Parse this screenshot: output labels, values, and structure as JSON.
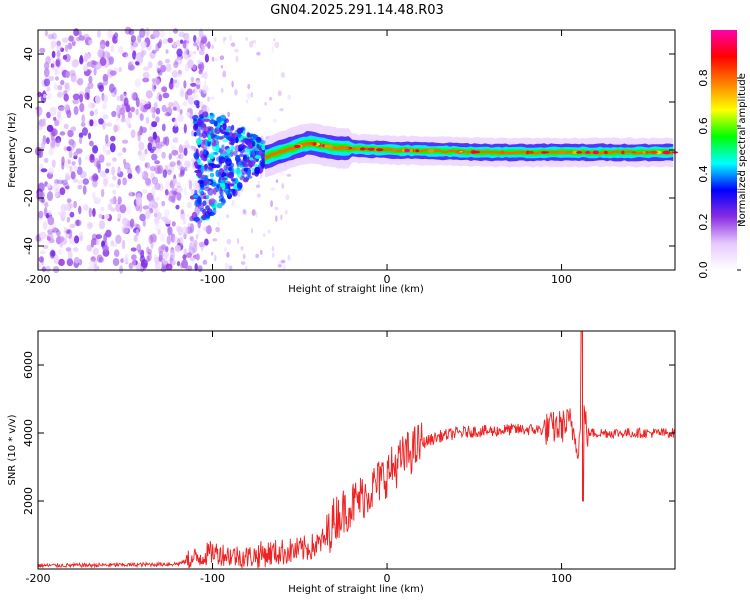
{
  "title": "GN04.2025.291.14.48.R03",
  "chart_data": [
    {
      "type": "heatmap",
      "name": "spectrogram",
      "xlabel": "Height of straight line (km)",
      "ylabel": "Frequency (Hz)",
      "xlim": [
        -200,
        165
      ],
      "ylim": [
        -50,
        50
      ],
      "xticks": [
        -200,
        -100,
        0,
        100
      ],
      "yticks": [
        -40,
        -20,
        0,
        20,
        40
      ],
      "colorbar": {
        "label": "Normalized spectral amplitude",
        "range": [
          0.0,
          1.0
        ],
        "ticks": [
          0.0,
          0.2,
          0.4,
          0.6,
          0.8
        ],
        "colormap": [
          "#ffffff",
          "#e6c8ff",
          "#8a2be2",
          "#0000ff",
          "#00ffff",
          "#00ff00",
          "#ffff00",
          "#ff8000",
          "#ff0000",
          "#ff00aa"
        ]
      },
      "features": [
        {
          "region": "noise",
          "x_range": [
            -200,
            -110
          ],
          "f_range": [
            -50,
            50
          ],
          "amplitude": 0.15
        },
        {
          "region": "transition",
          "x_range": [
            -110,
            -70
          ],
          "f_range": [
            -25,
            15
          ],
          "amplitude": 0.3
        },
        {
          "region": "signal",
          "x_range": [
            -70,
            165
          ],
          "center_freq": [
            [
              -70,
              -3
            ],
            [
              -45,
              3
            ],
            [
              -30,
              1
            ],
            [
              0,
              0
            ],
            [
              60,
              -1
            ],
            [
              165,
              -1
            ]
          ],
          "amplitude": 0.8
        }
      ]
    },
    {
      "type": "line",
      "name": "snr",
      "xlabel": "Height of straight line (km)",
      "ylabel": "SNR (10 * v/v)",
      "xlim": [
        -200,
        165
      ],
      "ylim": [
        0,
        7000
      ],
      "xticks": [
        -200,
        -100,
        0,
        100
      ],
      "yticks": [
        2000,
        4000,
        6000
      ],
      "color": "#ee2222",
      "x": [
        -200,
        -150,
        -120,
        -110,
        -100,
        -90,
        -80,
        -70,
        -60,
        -50,
        -40,
        -35,
        -30,
        -20,
        -10,
        0,
        10,
        20,
        30,
        40,
        50,
        60,
        70,
        80,
        90,
        100,
        105,
        110,
        112,
        115,
        120,
        140,
        165
      ],
      "y": [
        100,
        120,
        150,
        300,
        500,
        400,
        350,
        450,
        500,
        550,
        700,
        900,
        1500,
        1900,
        2300,
        2800,
        3300,
        3700,
        3900,
        4000,
        4050,
        4050,
        4100,
        4100,
        4100,
        4200,
        4300,
        3600,
        4800,
        4000,
        4000,
        4000,
        4000
      ],
      "spikes": [
        {
          "x": 112,
          "y": 7000
        },
        {
          "x": 112,
          "y": 2000
        }
      ]
    }
  ]
}
